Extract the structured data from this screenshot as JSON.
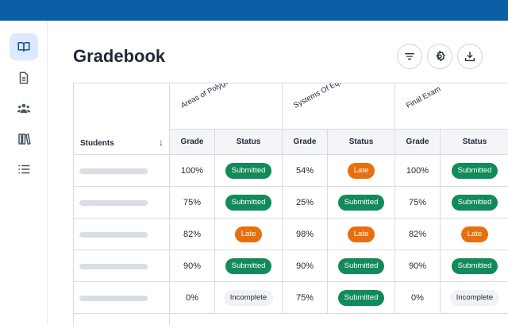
{
  "page": {
    "title": "Gradebook"
  },
  "colors": {
    "topbar": "#0b5fa5",
    "submitted": "#138a5b",
    "late": "#e86f0e",
    "incomplete": "#f1f2f4",
    "nav_active": "#dbeafe"
  },
  "sidebar": {
    "items": [
      {
        "icon": "book-icon",
        "active": true
      },
      {
        "icon": "document-icon",
        "active": false
      },
      {
        "icon": "users-icon",
        "active": false
      },
      {
        "icon": "library-icon",
        "active": false
      },
      {
        "icon": "list-icon",
        "active": false
      }
    ]
  },
  "toolbar": {
    "buttons": [
      {
        "icon": "filter-icon"
      },
      {
        "icon": "settings-icon"
      },
      {
        "icon": "download-icon"
      }
    ]
  },
  "table": {
    "students_header": "Students",
    "sort_icon": "arrow-down-icon",
    "grade_header": "Grade",
    "status_header": "Status",
    "assignments": [
      "Areas of Polygons",
      "Systems Of Equations",
      "Final Exam"
    ],
    "rows": [
      {
        "cells": [
          {
            "grade": "100%",
            "status": "Submitted"
          },
          {
            "grade": "54%",
            "status": "Late"
          },
          {
            "grade": "100%",
            "status": "Submitted"
          }
        ]
      },
      {
        "cells": [
          {
            "grade": "75%",
            "status": "Submitted"
          },
          {
            "grade": "25%",
            "status": "Submitted"
          },
          {
            "grade": "75%",
            "status": "Submitted"
          }
        ]
      },
      {
        "cells": [
          {
            "grade": "82%",
            "status": "Late"
          },
          {
            "grade": "98%",
            "status": "Late"
          },
          {
            "grade": "82%",
            "status": "Late"
          }
        ]
      },
      {
        "cells": [
          {
            "grade": "90%",
            "status": "Submitted"
          },
          {
            "grade": "90%",
            "status": "Submitted"
          },
          {
            "grade": "90%",
            "status": "Submitted"
          }
        ]
      },
      {
        "cells": [
          {
            "grade": "0%",
            "status": "Incomplete"
          },
          {
            "grade": "75%",
            "status": "Submitted"
          },
          {
            "grade": "0%",
            "status": "Incomplete"
          }
        ]
      }
    ]
  }
}
